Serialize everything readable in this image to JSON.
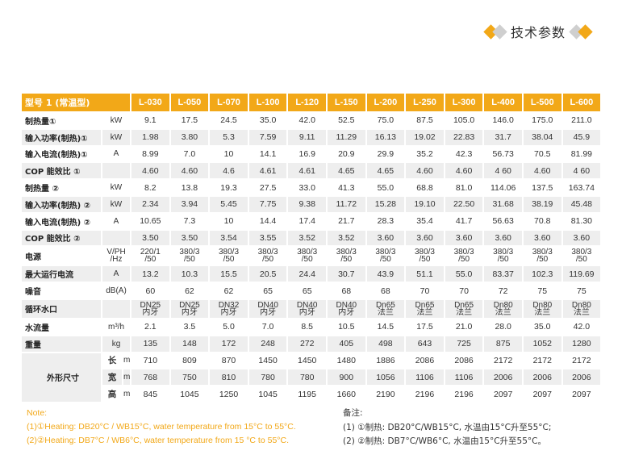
{
  "header": {
    "title": "技术参数"
  },
  "table": {
    "header_label": "型号 1 (常温型)",
    "models": [
      "L-030",
      "L-050",
      "L-070",
      "L-100",
      "L-120",
      "L-150",
      "L-200",
      "L-250",
      "L-300",
      "L-400",
      "L-500",
      "L-600"
    ],
    "rows": [
      {
        "label": "制热量①",
        "unit": "kW",
        "values": [
          "9.1",
          "17.5",
          "24.5",
          "35.0",
          "42.0",
          "52.5",
          "75.0",
          "87.5",
          "105.0",
          "146.0",
          "175.0",
          "211.0"
        ]
      },
      {
        "label": "输入功率(制热)①",
        "unit": "kW",
        "values": [
          "1.98",
          "3.80",
          "5.3",
          "7.59",
          "9.11",
          "11.29",
          "16.13",
          "19.02",
          "22.83",
          "31.7",
          "38.04",
          "45.9"
        ]
      },
      {
        "label": "输入电流(制热)①",
        "unit": "A",
        "values": [
          "8.99",
          "7.0",
          "10",
          "14.1",
          "16.9",
          "20.9",
          "29.9",
          "35.2",
          "42.3",
          "56.73",
          "70.5",
          "81.99"
        ]
      },
      {
        "label": "COP 能效比 ①",
        "unit": "",
        "values": [
          "4.60",
          "4.60",
          "4.6",
          "4.61",
          "4.61",
          "4.65",
          "4.65",
          "4.60",
          "4.60",
          "4 60",
          "4.60",
          "4 60"
        ]
      },
      {
        "label": "制热量 ②",
        "unit": "kW",
        "values": [
          "8.2",
          "13.8",
          "19.3",
          "27.5",
          "33.0",
          "41.3",
          "55.0",
          "68.8",
          "81.0",
          "114.06",
          "137.5",
          "163.74"
        ]
      },
      {
        "label": "输入功率(制热) ②",
        "unit": "kW",
        "values": [
          "2.34",
          "3.94",
          "5.45",
          "7.75",
          "9.38",
          "11.72",
          "15.28",
          "19.10",
          "22.50",
          "31.68",
          "38.19",
          "45.48"
        ]
      },
      {
        "label": "输入电流(制热) ②",
        "unit": "A",
        "values": [
          "10.65",
          "7.3",
          "10",
          "14.4",
          "17.4",
          "21.7",
          "28.3",
          "35.4",
          "41.7",
          "56.63",
          "70.8",
          "81.30"
        ]
      },
      {
        "label": "COP 能效比 ②",
        "unit": "",
        "values": [
          "3.50",
          "3.50",
          "3.54",
          "3.55",
          "3.52",
          "3.52",
          "3.60",
          "3.60",
          "3.60",
          "3.60",
          "3.60",
          "3.60"
        ]
      },
      {
        "label": "电源",
        "unit": [
          "V/PH",
          "/Hz"
        ],
        "values": [
          [
            "220/1",
            "/50"
          ],
          [
            "380/3",
            "/50"
          ],
          [
            "380/3",
            "/50"
          ],
          [
            "380/3",
            "/50"
          ],
          [
            "380/3",
            "/50"
          ],
          [
            "380/3",
            "/50"
          ],
          [
            "380/3",
            "/50"
          ],
          [
            "380/3",
            "/50"
          ],
          [
            "380/3",
            "/50"
          ],
          [
            "380/3",
            "/50"
          ],
          [
            "380/3",
            "/50"
          ],
          [
            "380/3",
            "/50"
          ]
        ]
      },
      {
        "label": "最大运行电流",
        "unit": "A",
        "values": [
          "13.2",
          "10.3",
          "15.5",
          "20.5",
          "24.4",
          "30.7",
          "43.9",
          "51.1",
          "55.0",
          "83.37",
          "102.3",
          "119.69"
        ]
      },
      {
        "label": "噪音",
        "unit": "dB(A)",
        "values": [
          "60",
          "62",
          "62",
          "65",
          "65",
          "68",
          "68",
          "70",
          "70",
          "72",
          "75",
          "75"
        ]
      },
      {
        "label": "循环水口",
        "unit": "",
        "values": [
          [
            "DN25",
            "内牙"
          ],
          [
            "DN25",
            "内牙"
          ],
          [
            "DN32",
            "内牙"
          ],
          [
            "DN40",
            "内牙"
          ],
          [
            "DN40",
            "内牙"
          ],
          [
            "DN40",
            "内牙"
          ],
          [
            "Dn65",
            "法兰"
          ],
          [
            "Dn65",
            "法兰"
          ],
          [
            "Dn65",
            "法兰"
          ],
          [
            "Dn80",
            "法兰"
          ],
          [
            "Dn80",
            "法兰"
          ],
          [
            "Dn80",
            "法兰"
          ]
        ]
      },
      {
        "label": "水流量",
        "unit": "m³/h",
        "values": [
          "2.1",
          "3.5",
          "5.0",
          "7.0",
          "8.5",
          "10.5",
          "14.5",
          "17.5",
          "21.0",
          "28.0",
          "35.0",
          "42.0"
        ]
      },
      {
        "label": "重量",
        "unit": "kg",
        "values": [
          "135",
          "148",
          "172",
          "248",
          "272",
          "405",
          "498",
          "643",
          "725",
          "875",
          "1052",
          "1280"
        ]
      }
    ],
    "dimensions": {
      "label": "外形尺寸",
      "rows": [
        {
          "sub": "长",
          "unit": "mm",
          "values": [
            "710",
            "809",
            "870",
            "1450",
            "1450",
            "1480",
            "1886",
            "2086",
            "2086",
            "2172",
            "2172",
            "2172"
          ]
        },
        {
          "sub": "宽",
          "unit": "mm",
          "values": [
            "768",
            "750",
            "810",
            "780",
            "780",
            "900",
            "1056",
            "1106",
            "1106",
            "2006",
            "2006",
            "2006"
          ]
        },
        {
          "sub": "高",
          "unit": "mm",
          "values": [
            "845",
            "1045",
            "1250",
            "1045",
            "1195",
            "1660",
            "2190",
            "2196",
            "2196",
            "2097",
            "2097",
            "2097"
          ]
        }
      ]
    }
  },
  "notes_en": [
    "Note:",
    "(1)①Heating: DB20°C / WB15°C, water temperature from 15°C to 55°C.",
    "(2)②Heating: DB7°C / WB6°C, water temperature from 15 °C to 55°C."
  ],
  "notes_cn": [
    "备注:",
    "(1) ①制热: DB20°C/WB15°C, 水温由15°C升至55°C;",
    "(2) ②制热: DB7°C/WB6°C, 水温由15°C升至55°C。"
  ],
  "colors": {
    "accent": "#f2a818",
    "row_alt": "#eeeeee"
  }
}
